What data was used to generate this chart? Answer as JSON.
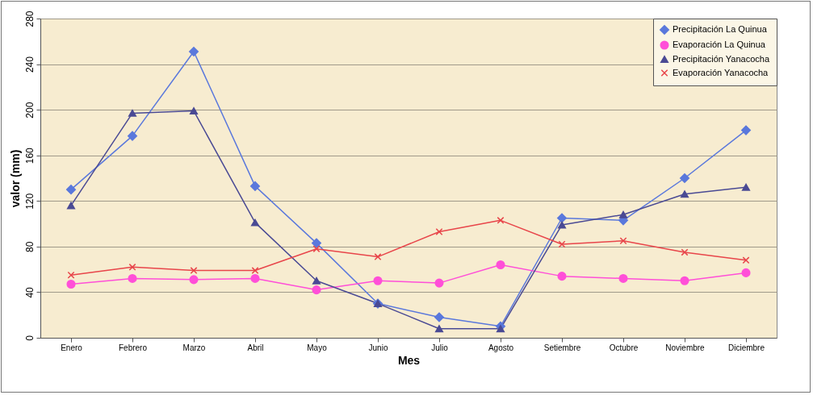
{
  "chart_data": {
    "type": "line",
    "xlabel": "Mes",
    "ylabel": "valor (mm)",
    "categories": [
      "Enero",
      "Febrero",
      "Marzo",
      "Abril",
      "Mayo",
      "Junio",
      "Julio",
      "Agosto",
      "Setiembre",
      "Octubre",
      "Noviembre",
      "Diciembre"
    ],
    "series": [
      {
        "name": "Precipitación La Quinua",
        "color": "#5a78dc",
        "marker": "diamond",
        "values": [
          130,
          177,
          251,
          133,
          83,
          30,
          18,
          10,
          105,
          103,
          140,
          182
        ]
      },
      {
        "name": "Evaporación La Quinua",
        "color": "#ff4fd8",
        "marker": "circle",
        "values": [
          47,
          52,
          51,
          52,
          42,
          50,
          48,
          64,
          54,
          52,
          50,
          57
        ]
      },
      {
        "name": "Precipitación Yanacocha",
        "color": "#4a4a94",
        "marker": "triangle",
        "values": [
          116,
          197,
          199,
          101,
          50,
          30,
          8,
          8,
          99,
          108,
          126,
          132
        ]
      },
      {
        "name": "Evaporación Yanacocha",
        "color": "#e8454a",
        "marker": "cross",
        "values": [
          55,
          62,
          59,
          59,
          78,
          71,
          93,
          103,
          82,
          85,
          75,
          68
        ]
      }
    ],
    "ylim": [
      0,
      280
    ],
    "yticks": [
      0,
      40,
      80,
      120,
      160,
      200,
      240,
      280
    ],
    "grid": "y",
    "legend": "top right"
  }
}
